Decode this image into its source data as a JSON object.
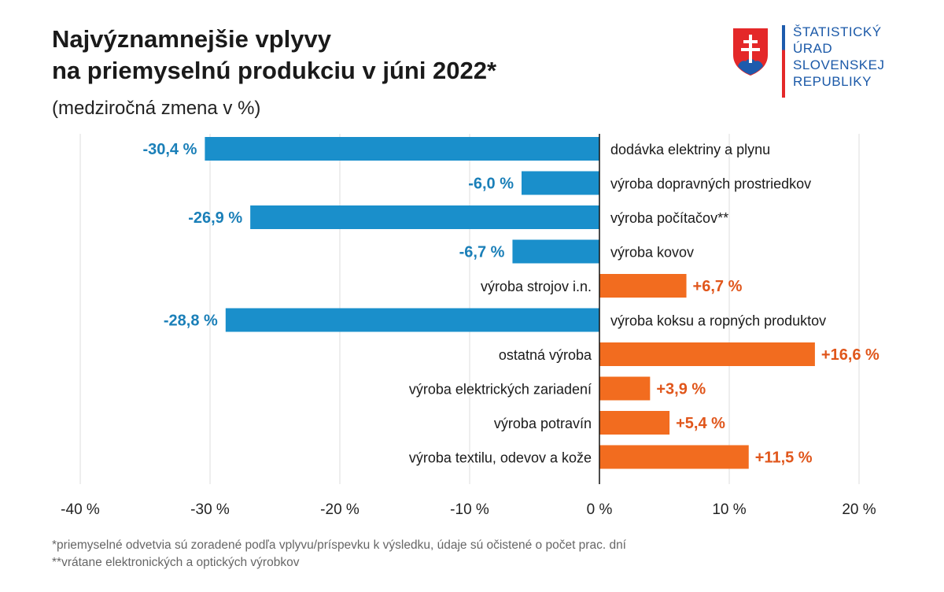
{
  "header": {
    "title_line1": "Najvýznamnejšie vplyvy",
    "title_line2": "na priemyselnú produkciu v júni 2022*",
    "subtitle": "(medziročná zmena v %)"
  },
  "logo": {
    "line1": "ŠTATISTICKÝ",
    "line2": "ÚRAD",
    "line3": "SLOVENSKEJ",
    "line4": "REPUBLIKY"
  },
  "footnotes": {
    "note1": "*priemyselné odvetvia sú zoradené podľa vplyvu/príspevku k výsledku, údaje sú očistené o počet prac. dní",
    "note2": "**vrátane elektronických a optických výrobkov"
  },
  "colors": {
    "negative": "#1a8fcb",
    "positive": "#f26c1f",
    "negative_label": "#1a7fb8",
    "positive_label": "#e0561b",
    "grid": "#dddddd",
    "axis": "#111111"
  },
  "chart_data": {
    "type": "bar",
    "orientation": "horizontal",
    "title": "Najvýznamnejšie vplyvy na priemyselnú produkciu v júni 2022*",
    "xlabel": "",
    "ylabel": "",
    "xlim": [
      -40,
      20
    ],
    "xticks": [
      -40,
      -30,
      -20,
      -10,
      0,
      10,
      20
    ],
    "xtick_labels": [
      "-40 %",
      "-30 %",
      "-20 %",
      "-10 %",
      "0 %",
      "10 %",
      "20 %"
    ],
    "grid": true,
    "categories": [
      "dodávka elektriny a plynu",
      "výroba dopravných prostriedkov",
      "výroba počítačov**",
      "výroba kovov",
      "výroba strojov i.n.",
      "výroba koksu a ropných produktov",
      "ostatná výroba",
      "výroba elektrických zariadení",
      "výroba potravín",
      "výroba textilu, odevov a kože"
    ],
    "values": [
      -30.4,
      -6.0,
      -26.9,
      -6.7,
      6.7,
      -28.8,
      16.6,
      3.9,
      5.4,
      11.5
    ],
    "value_labels": [
      "-30,4 %",
      "-6,0 %",
      "-26,9 %",
      "-6,7 %",
      "+6,7 %",
      "-28,8 %",
      "+16,6 %",
      "+3,9 %",
      "+5,4 %",
      "+11,5 %"
    ]
  }
}
